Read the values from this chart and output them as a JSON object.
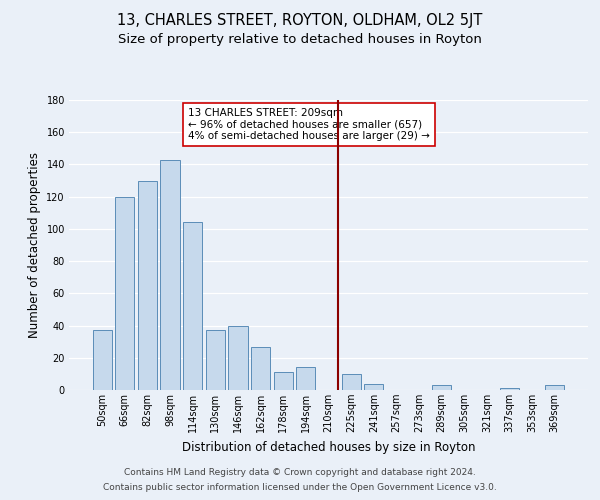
{
  "title": "13, CHARLES STREET, ROYTON, OLDHAM, OL2 5JT",
  "subtitle": "Size of property relative to detached houses in Royton",
  "xlabel": "Distribution of detached houses by size in Royton",
  "ylabel": "Number of detached properties",
  "bar_labels": [
    "50sqm",
    "66sqm",
    "82sqm",
    "98sqm",
    "114sqm",
    "130sqm",
    "146sqm",
    "162sqm",
    "178sqm",
    "194sqm",
    "210sqm",
    "225sqm",
    "241sqm",
    "257sqm",
    "273sqm",
    "289sqm",
    "305sqm",
    "321sqm",
    "337sqm",
    "353sqm",
    "369sqm"
  ],
  "bar_values": [
    37,
    120,
    130,
    143,
    104,
    37,
    40,
    27,
    11,
    14,
    0,
    10,
    4,
    0,
    0,
    3,
    0,
    0,
    1,
    0,
    3
  ],
  "bar_color": "#c6d9ec",
  "bar_edge_color": "#5b8db8",
  "annotation_line_color": "#8b0000",
  "annotation_box_text": "13 CHARLES STREET: 209sqm\n← 96% of detached houses are smaller (657)\n4% of semi-detached houses are larger (29) →",
  "footnote_line1": "Contains HM Land Registry data © Crown copyright and database right 2024.",
  "footnote_line2": "Contains public sector information licensed under the Open Government Licence v3.0.",
  "ylim": [
    0,
    180
  ],
  "background_color": "#eaf0f8",
  "plot_bg_color": "#eaf0f8",
  "grid_color": "#ffffff",
  "title_fontsize": 10.5,
  "subtitle_fontsize": 9.5,
  "axis_label_fontsize": 8.5,
  "tick_fontsize": 7,
  "footnote_fontsize": 6.5,
  "annotation_fontsize": 7.5
}
